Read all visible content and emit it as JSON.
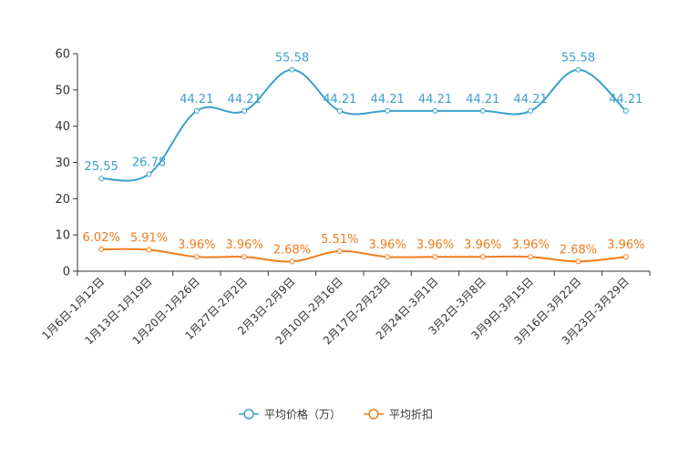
{
  "chart_data": {
    "type": "line",
    "categories": [
      "1月6日-1月12日",
      "1月13日-1月19日",
      "1月20日-1月26日",
      "1月27日-2月2日",
      "2月3日-2月9日",
      "2月10日-2月16日",
      "2月17日-2月23日",
      "2月24日-3月1日",
      "3月2日-3月8日",
      "3月9日-3月15日",
      "3月16日-3月22日",
      "3月23日-3月29日"
    ],
    "ylim": [
      0,
      60
    ],
    "yticks": [
      0,
      10,
      20,
      30,
      40,
      50,
      60
    ],
    "series": [
      {
        "name": "平均价格（万）",
        "color": "#3aa0cc",
        "values": [
          25.55,
          26.78,
          44.21,
          44.21,
          55.58,
          44.21,
          44.21,
          44.21,
          44.21,
          44.21,
          55.58,
          44.21
        ],
        "labels": [
          "25.55",
          "26.78",
          "44.21",
          "44.21",
          "55.58",
          "44.21",
          "44.21",
          "44.21",
          "44.21",
          "44.21",
          "55.58",
          "44.21"
        ]
      },
      {
        "name": "平均折扣",
        "color": "#f07c1b",
        "values": [
          6.02,
          5.91,
          3.96,
          3.96,
          2.68,
          5.51,
          3.96,
          3.96,
          3.96,
          3.96,
          2.68,
          3.96
        ],
        "labels": [
          "6.02%",
          "5.91%",
          "3.96%",
          "3.96%",
          "2.68%",
          "5.51%",
          "3.96%",
          "3.96%",
          "3.96%",
          "3.96%",
          "2.68%",
          "3.96%"
        ]
      }
    ],
    "legend_position": "bottom-center",
    "grid": false
  }
}
